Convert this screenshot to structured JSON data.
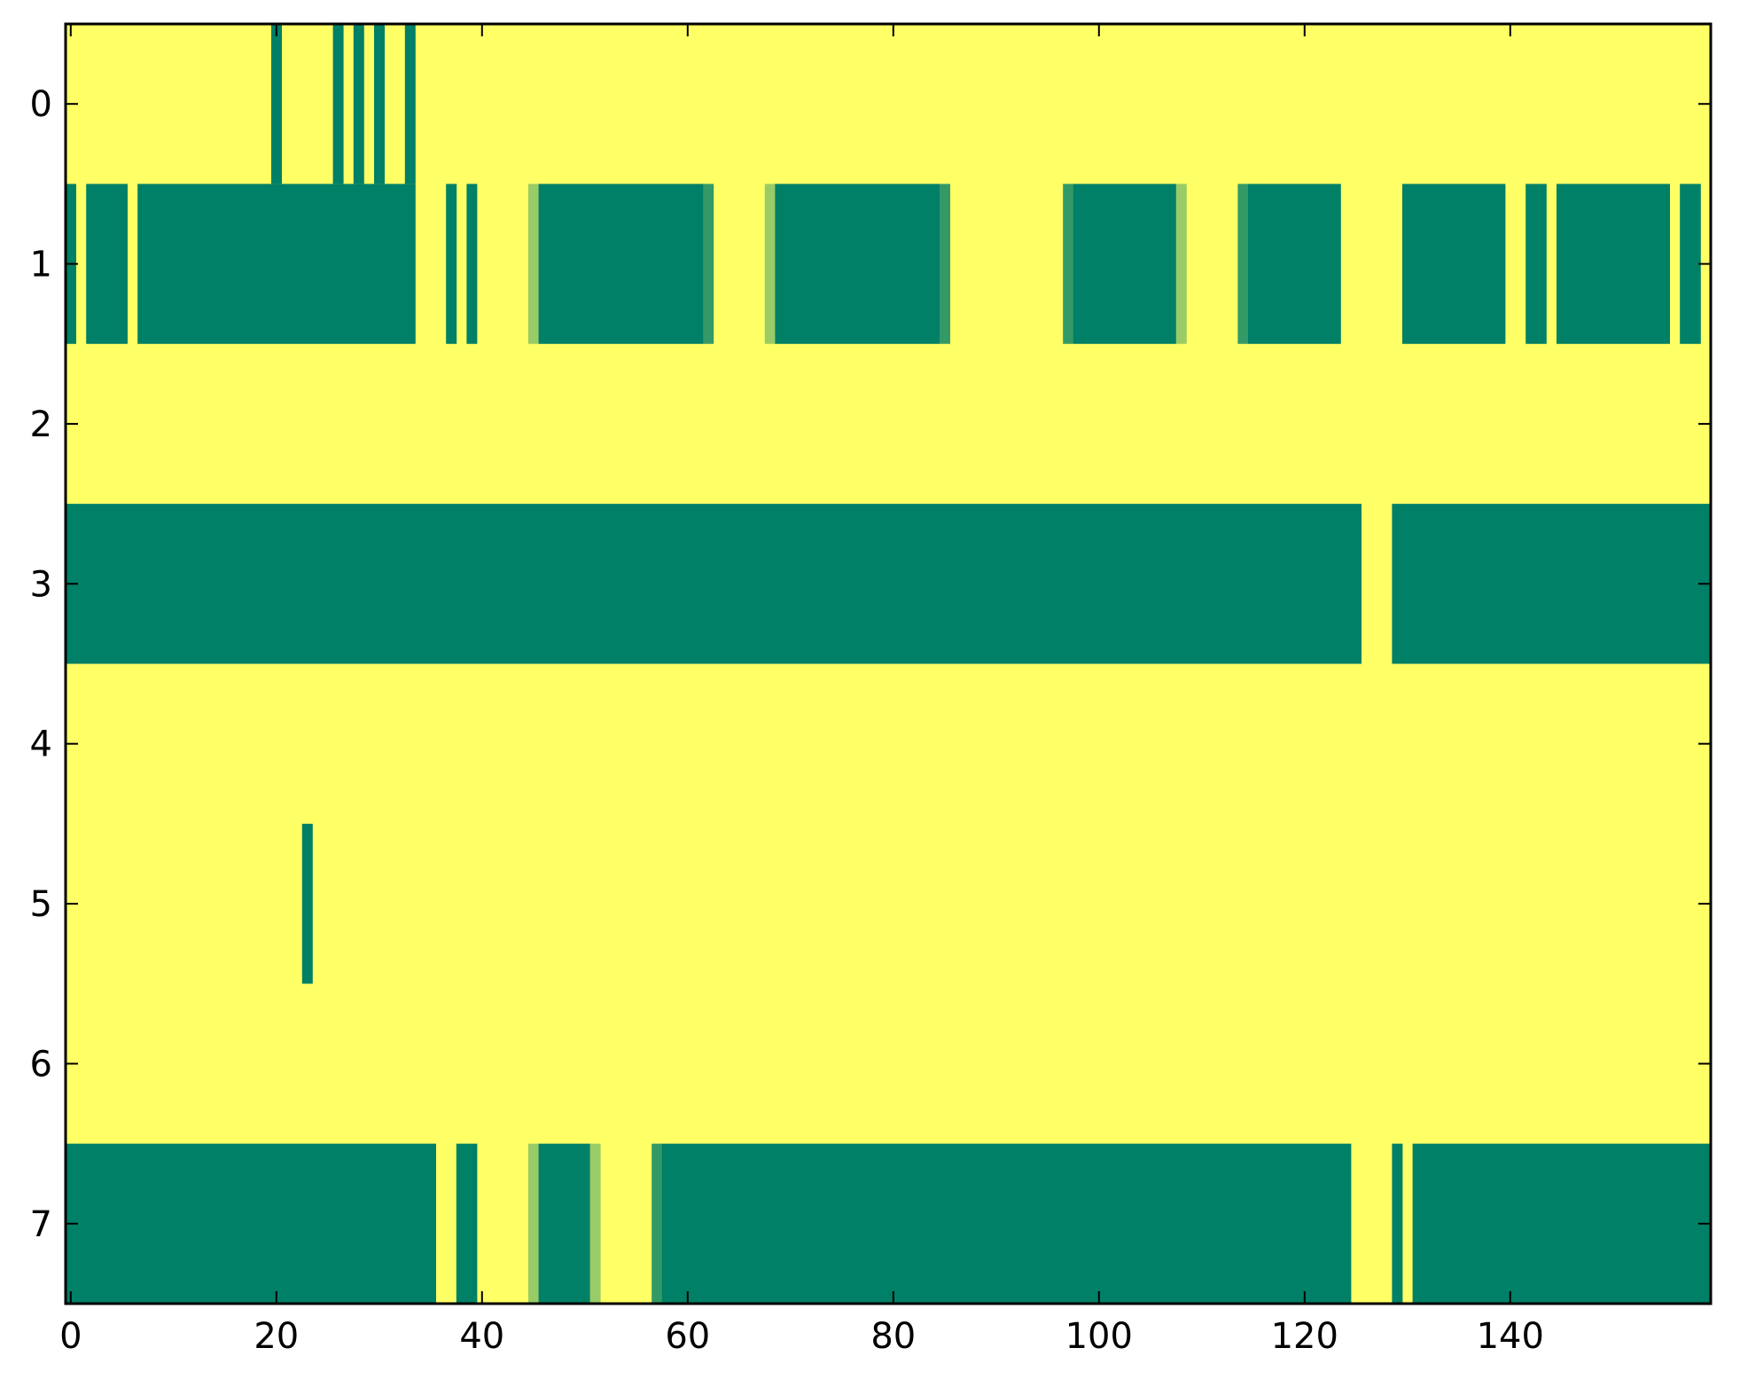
{
  "chart_data": {
    "type": "heatmap",
    "title": "",
    "xlabel": "",
    "ylabel": "",
    "n_cols": 160,
    "n_rows": 8,
    "xlim": [
      -0.5,
      159.5
    ],
    "ylim": [
      7.5,
      -0.5
    ],
    "x_ticks": [
      "0",
      "20",
      "40",
      "60",
      "80",
      "100",
      "120",
      "140"
    ],
    "y_ticks": [
      "0",
      "1",
      "2",
      "3",
      "4",
      "5",
      "6",
      "7"
    ],
    "colors": {
      "background": "#ffff66",
      "high": "#008066",
      "mid_light": "#99cc66",
      "mid_dark": "#339966",
      "axis": "#000000"
    },
    "grid": false,
    "legend": "none",
    "segments": [
      {
        "row": 0,
        "start": 20,
        "end": 20,
        "level": "high"
      },
      {
        "row": 0,
        "start": 26,
        "end": 26,
        "level": "high"
      },
      {
        "row": 0,
        "start": 28,
        "end": 28,
        "level": "high"
      },
      {
        "row": 0,
        "start": 30,
        "end": 30,
        "level": "high"
      },
      {
        "row": 0,
        "start": 33,
        "end": 33,
        "level": "high"
      },
      {
        "row": 1,
        "start": 0,
        "end": 0,
        "level": "high"
      },
      {
        "row": 1,
        "start": 2,
        "end": 5,
        "level": "high"
      },
      {
        "row": 1,
        "start": 7,
        "end": 33,
        "level": "high"
      },
      {
        "row": 1,
        "start": 37,
        "end": 37,
        "level": "high"
      },
      {
        "row": 1,
        "start": 39,
        "end": 39,
        "level": "high"
      },
      {
        "row": 1,
        "start": 45,
        "end": 45,
        "level": "mid_light"
      },
      {
        "row": 1,
        "start": 46,
        "end": 61,
        "level": "high"
      },
      {
        "row": 1,
        "start": 62,
        "end": 62,
        "level": "mid_dark"
      },
      {
        "row": 1,
        "start": 68,
        "end": 68,
        "level": "mid_light"
      },
      {
        "row": 1,
        "start": 69,
        "end": 84,
        "level": "high"
      },
      {
        "row": 1,
        "start": 85,
        "end": 85,
        "level": "mid_dark"
      },
      {
        "row": 1,
        "start": 97,
        "end": 97,
        "level": "mid_dark"
      },
      {
        "row": 1,
        "start": 98,
        "end": 107,
        "level": "high"
      },
      {
        "row": 1,
        "start": 108,
        "end": 108,
        "level": "mid_light"
      },
      {
        "row": 1,
        "start": 114,
        "end": 114,
        "level": "mid_dark"
      },
      {
        "row": 1,
        "start": 115,
        "end": 123,
        "level": "high"
      },
      {
        "row": 1,
        "start": 130,
        "end": 139,
        "level": "high"
      },
      {
        "row": 1,
        "start": 142,
        "end": 143,
        "level": "high"
      },
      {
        "row": 1,
        "start": 145,
        "end": 155,
        "level": "high"
      },
      {
        "row": 1,
        "start": 157,
        "end": 158,
        "level": "high"
      },
      {
        "row": 3,
        "start": 0,
        "end": 125,
        "level": "high"
      },
      {
        "row": 3,
        "start": 129,
        "end": 159,
        "level": "high"
      },
      {
        "row": 5,
        "start": 23,
        "end": 23,
        "level": "high"
      },
      {
        "row": 7,
        "start": 0,
        "end": 35,
        "level": "high"
      },
      {
        "row": 7,
        "start": 38,
        "end": 39,
        "level": "high"
      },
      {
        "row": 7,
        "start": 45,
        "end": 45,
        "level": "mid_light"
      },
      {
        "row": 7,
        "start": 46,
        "end": 50,
        "level": "high"
      },
      {
        "row": 7,
        "start": 51,
        "end": 51,
        "level": "mid_light"
      },
      {
        "row": 7,
        "start": 57,
        "end": 57,
        "level": "mid_dark"
      },
      {
        "row": 7,
        "start": 58,
        "end": 124,
        "level": "high"
      },
      {
        "row": 7,
        "start": 129,
        "end": 129,
        "level": "high"
      },
      {
        "row": 7,
        "start": 131,
        "end": 159,
        "level": "high"
      }
    ]
  }
}
